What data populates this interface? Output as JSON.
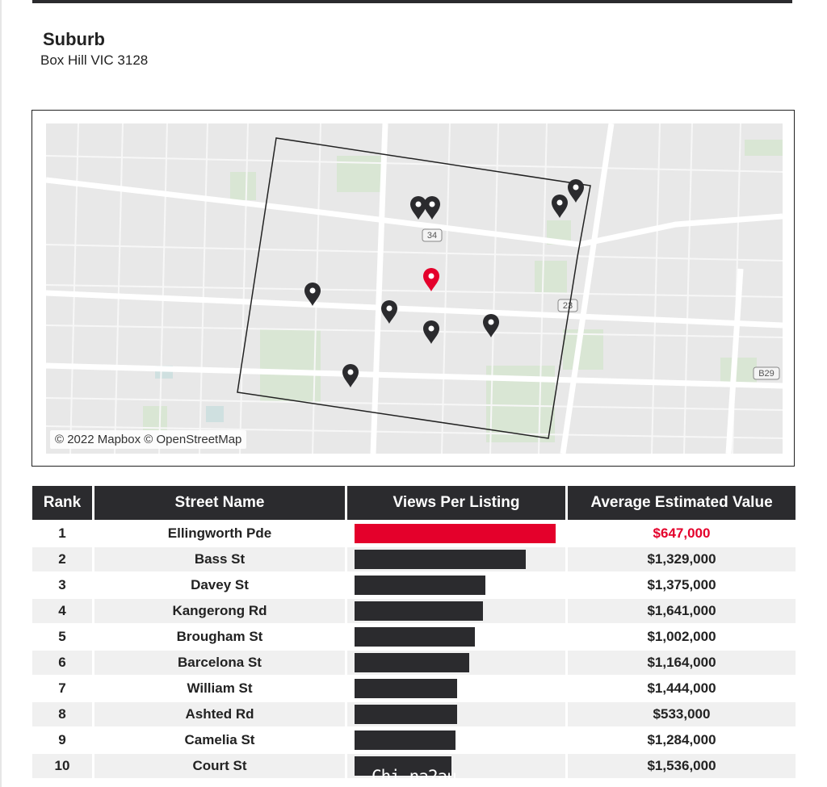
{
  "header": {
    "title": "Suburb",
    "location": "Box Hill VIC 3128"
  },
  "map": {
    "attribution": "© 2022 Mapbox © OpenStreetMap",
    "road_shields": [
      "34",
      "23",
      "B29"
    ],
    "colors": {
      "land": "#e8e8e8",
      "park": "#d9e6d4",
      "road": "#ffffff",
      "water": "#cfe0e0",
      "pin": "#2b2b2e",
      "pin_highlight": "#e4002b",
      "boundary": "#222222"
    }
  },
  "table": {
    "columns": [
      "Rank",
      "Street Name",
      "Views Per Listing",
      "Average Estimated Value"
    ],
    "rows": [
      {
        "rank": "1",
        "street": "Ellingworth Pde",
        "views_share": 1.0,
        "value": "$647,000",
        "highlight": true
      },
      {
        "rank": "2",
        "street": "Bass St",
        "views_share": 0.85,
        "value": "$1,329,000"
      },
      {
        "rank": "3",
        "street": "Davey St",
        "views_share": 0.65,
        "value": "$1,375,000"
      },
      {
        "rank": "4",
        "street": "Kangerong Rd",
        "views_share": 0.64,
        "value": "$1,641,000"
      },
      {
        "rank": "5",
        "street": "Brougham St",
        "views_share": 0.6,
        "value": "$1,002,000"
      },
      {
        "rank": "6",
        "street": "Barcelona St",
        "views_share": 0.57,
        "value": "$1,164,000"
      },
      {
        "rank": "7",
        "street": "William St",
        "views_share": 0.51,
        "value": "$1,444,000"
      },
      {
        "rank": "8",
        "street": "Ashted Rd",
        "views_share": 0.51,
        "value": "$533,000"
      },
      {
        "rank": "9",
        "street": "Camelia St",
        "views_share": 0.5,
        "value": "$1,284,000"
      },
      {
        "rank": "10",
        "street": "Court St",
        "views_share": 0.48,
        "value": "$1,536,000"
      }
    ],
    "colors": {
      "bar": "#2b2b2e",
      "bar_highlight": "#e4002b",
      "header_bg": "#2b2b2e"
    }
  },
  "watermark": "Chi na2au"
}
